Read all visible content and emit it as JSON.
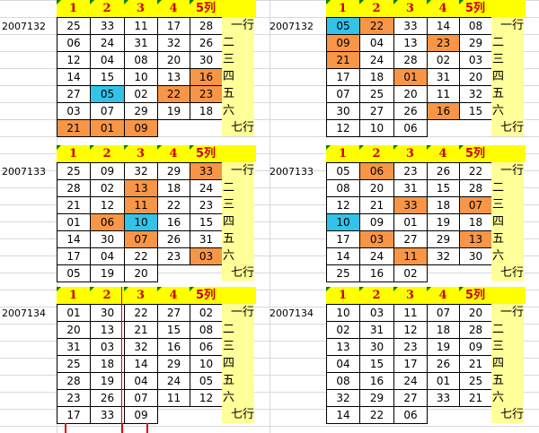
{
  "col_headers": [
    "1",
    "2",
    "3",
    "4",
    "5列"
  ],
  "row_labels": [
    "一行",
    "二",
    "三",
    "四",
    "五",
    "六",
    "七行"
  ],
  "colors": {
    "orange": "#f79646",
    "blue": "#33c3e8",
    "header_yellow": "#ffff00",
    "label_yellow": "#ffff99",
    "header_text": "#cc0000"
  },
  "blocks": [
    {
      "period": "2007132",
      "rows": [
        [
          {
            "v": "25"
          },
          {
            "v": "33"
          },
          {
            "v": "11"
          },
          {
            "v": "17"
          },
          {
            "v": "28"
          }
        ],
        [
          {
            "v": "06"
          },
          {
            "v": "24"
          },
          {
            "v": "31"
          },
          {
            "v": "32"
          },
          {
            "v": "26"
          }
        ],
        [
          {
            "v": "12"
          },
          {
            "v": "04"
          },
          {
            "v": "08"
          },
          {
            "v": "20"
          },
          {
            "v": "30"
          }
        ],
        [
          {
            "v": "14"
          },
          {
            "v": "15"
          },
          {
            "v": "10"
          },
          {
            "v": "13"
          },
          {
            "v": "16",
            "h": "o"
          }
        ],
        [
          {
            "v": "27"
          },
          {
            "v": "05",
            "h": "b"
          },
          {
            "v": "02"
          },
          {
            "v": "22",
            "h": "o"
          },
          {
            "v": "23",
            "h": "o"
          }
        ],
        [
          {
            "v": "03"
          },
          {
            "v": "07"
          },
          {
            "v": "29"
          },
          {
            "v": "19"
          },
          {
            "v": "18"
          }
        ],
        [
          {
            "v": "21",
            "h": "o"
          },
          {
            "v": "01",
            "h": "o"
          },
          {
            "v": "09",
            "h": "o"
          },
          {
            "v": ""
          },
          {
            "v": ""
          }
        ]
      ]
    },
    {
      "period": "2007132",
      "rows": [
        [
          {
            "v": "05",
            "h": "b"
          },
          {
            "v": "22",
            "h": "o"
          },
          {
            "v": "33"
          },
          {
            "v": "14"
          },
          {
            "v": "08"
          }
        ],
        [
          {
            "v": "09",
            "h": "o"
          },
          {
            "v": "04"
          },
          {
            "v": "13"
          },
          {
            "v": "23",
            "h": "o"
          },
          {
            "v": "29"
          }
        ],
        [
          {
            "v": "21",
            "h": "o"
          },
          {
            "v": "24"
          },
          {
            "v": "28"
          },
          {
            "v": "02"
          },
          {
            "v": "03"
          }
        ],
        [
          {
            "v": "17"
          },
          {
            "v": "18"
          },
          {
            "v": "01",
            "h": "o"
          },
          {
            "v": "31"
          },
          {
            "v": "20"
          }
        ],
        [
          {
            "v": "07"
          },
          {
            "v": "25"
          },
          {
            "v": "20"
          },
          {
            "v": "11"
          },
          {
            "v": "32"
          }
        ],
        [
          {
            "v": "30"
          },
          {
            "v": "27"
          },
          {
            "v": "26"
          },
          {
            "v": "16",
            "h": "o"
          },
          {
            "v": "15"
          }
        ],
        [
          {
            "v": "12"
          },
          {
            "v": "10"
          },
          {
            "v": "06"
          },
          {
            "v": ""
          },
          {
            "v": ""
          }
        ]
      ]
    },
    {
      "period": "2007133",
      "rows": [
        [
          {
            "v": "25"
          },
          {
            "v": "09"
          },
          {
            "v": "32"
          },
          {
            "v": "29"
          },
          {
            "v": "33",
            "h": "o"
          }
        ],
        [
          {
            "v": "28"
          },
          {
            "v": "02"
          },
          {
            "v": "13",
            "h": "o"
          },
          {
            "v": "18"
          },
          {
            "v": "24"
          }
        ],
        [
          {
            "v": "21"
          },
          {
            "v": "12"
          },
          {
            "v": "11",
            "h": "o"
          },
          {
            "v": "22"
          },
          {
            "v": "23"
          }
        ],
        [
          {
            "v": "01"
          },
          {
            "v": "06",
            "h": "o"
          },
          {
            "v": "10",
            "h": "b"
          },
          {
            "v": "16"
          },
          {
            "v": "15"
          }
        ],
        [
          {
            "v": "14"
          },
          {
            "v": "30"
          },
          {
            "v": "07",
            "h": "o"
          },
          {
            "v": "26"
          },
          {
            "v": "31"
          }
        ],
        [
          {
            "v": "17"
          },
          {
            "v": "04"
          },
          {
            "v": "22"
          },
          {
            "v": "23"
          },
          {
            "v": "03",
            "h": "o"
          }
        ],
        [
          {
            "v": "05"
          },
          {
            "v": "19"
          },
          {
            "v": "20"
          },
          {
            "v": ""
          },
          {
            "v": ""
          }
        ]
      ]
    },
    {
      "period": "2007133",
      "rows": [
        [
          {
            "v": "05"
          },
          {
            "v": "06",
            "h": "o"
          },
          {
            "v": "23"
          },
          {
            "v": "26"
          },
          {
            "v": "22"
          }
        ],
        [
          {
            "v": "08"
          },
          {
            "v": "20"
          },
          {
            "v": "31"
          },
          {
            "v": "15"
          },
          {
            "v": "28"
          }
        ],
        [
          {
            "v": "12"
          },
          {
            "v": "21"
          },
          {
            "v": "33",
            "h": "o"
          },
          {
            "v": "18"
          },
          {
            "v": "07",
            "h": "o"
          }
        ],
        [
          {
            "v": "10",
            "h": "b"
          },
          {
            "v": "09"
          },
          {
            "v": "01"
          },
          {
            "v": "19"
          },
          {
            "v": "18"
          }
        ],
        [
          {
            "v": "17"
          },
          {
            "v": "03",
            "h": "o"
          },
          {
            "v": "27"
          },
          {
            "v": "29"
          },
          {
            "v": "13",
            "h": "o"
          }
        ],
        [
          {
            "v": "14"
          },
          {
            "v": "24"
          },
          {
            "v": "11",
            "h": "o"
          },
          {
            "v": "32"
          },
          {
            "v": "30"
          }
        ],
        [
          {
            "v": "25"
          },
          {
            "v": "16"
          },
          {
            "v": "02"
          },
          {
            "v": ""
          },
          {
            "v": ""
          }
        ]
      ]
    },
    {
      "period": "2007134",
      "rows": [
        [
          {
            "v": "01"
          },
          {
            "v": "30"
          },
          {
            "v": "22"
          },
          {
            "v": "27"
          },
          {
            "v": "02"
          }
        ],
        [
          {
            "v": "20"
          },
          {
            "v": "13"
          },
          {
            "v": "21"
          },
          {
            "v": "15"
          },
          {
            "v": "08"
          }
        ],
        [
          {
            "v": "31"
          },
          {
            "v": "03"
          },
          {
            "v": "32"
          },
          {
            "v": "16"
          },
          {
            "v": "06"
          }
        ],
        [
          {
            "v": "25"
          },
          {
            "v": "18"
          },
          {
            "v": "14"
          },
          {
            "v": "29"
          },
          {
            "v": "10"
          }
        ],
        [
          {
            "v": "28"
          },
          {
            "v": "19"
          },
          {
            "v": "04"
          },
          {
            "v": "24"
          },
          {
            "v": "05"
          }
        ],
        [
          {
            "v": "23"
          },
          {
            "v": "26"
          },
          {
            "v": "07"
          },
          {
            "v": "11"
          },
          {
            "v": "12"
          }
        ],
        [
          {
            "v": "17"
          },
          {
            "v": "33"
          },
          {
            "v": "09"
          },
          {
            "v": ""
          },
          {
            "v": ""
          }
        ]
      ]
    },
    {
      "period": "2007134",
      "rows": [
        [
          {
            "v": "10"
          },
          {
            "v": "03"
          },
          {
            "v": "11"
          },
          {
            "v": "07"
          },
          {
            "v": "20"
          }
        ],
        [
          {
            "v": "02"
          },
          {
            "v": "31"
          },
          {
            "v": "12"
          },
          {
            "v": "18"
          },
          {
            "v": "28"
          }
        ],
        [
          {
            "v": "13"
          },
          {
            "v": "30"
          },
          {
            "v": "23"
          },
          {
            "v": "19"
          },
          {
            "v": "09"
          }
        ],
        [
          {
            "v": "04"
          },
          {
            "v": "15"
          },
          {
            "v": "17"
          },
          {
            "v": "26"
          },
          {
            "v": "21"
          }
        ],
        [
          {
            "v": "08"
          },
          {
            "v": "16"
          },
          {
            "v": "24"
          },
          {
            "v": "01"
          },
          {
            "v": "25"
          }
        ],
        [
          {
            "v": "32"
          },
          {
            "v": "29"
          },
          {
            "v": "27"
          },
          {
            "v": "33"
          },
          {
            "v": "21"
          }
        ],
        [
          {
            "v": "14"
          },
          {
            "v": "22"
          },
          {
            "v": "06"
          },
          {
            "v": ""
          },
          {
            "v": ""
          }
        ]
      ]
    }
  ]
}
